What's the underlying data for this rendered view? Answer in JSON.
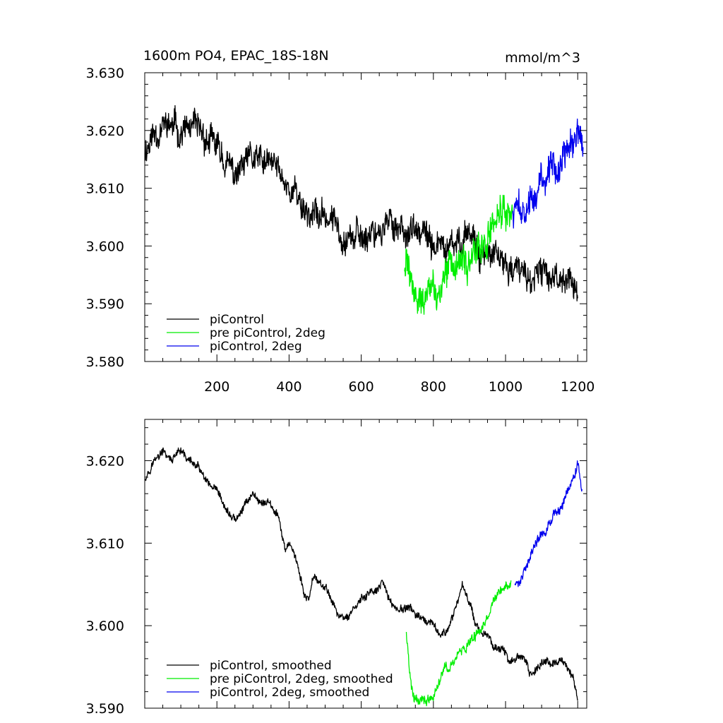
{
  "chart_data": [
    {
      "type": "line",
      "title": "1600m PO4, EPAC_18S-18N",
      "units": "mmol/m^3",
      "xlim": [
        0,
        1225
      ],
      "ylim": [
        3.58,
        3.63
      ],
      "xticks": [
        200,
        400,
        600,
        800,
        1000,
        1200
      ],
      "xtick_labels": [
        "200",
        "400",
        "600",
        "800",
        "1000",
        "1200"
      ],
      "yticks": [
        3.58,
        3.59,
        3.6,
        3.61,
        3.62,
        3.63
      ],
      "ytick_labels": [
        "3.580",
        "3.590",
        "3.600",
        "3.610",
        "3.620",
        "3.630"
      ],
      "legend_position": "bottom-left",
      "series": [
        {
          "name": "piControl",
          "color": "#000000",
          "x": [
            1,
            30,
            60,
            100,
            130,
            160,
            200,
            230,
            250,
            280,
            300,
            330,
            360,
            390,
            420,
            450,
            480,
            510,
            540,
            570,
            600,
            630,
            660,
            690,
            720,
            750,
            780,
            810,
            840,
            870,
            890,
            910,
            930,
            960,
            990,
            1020,
            1050,
            1080,
            1110,
            1140,
            1170,
            1190,
            1200
          ],
          "values": [
            3.617,
            3.62,
            3.621,
            3.62,
            3.62,
            3.619,
            3.617,
            3.614,
            3.612,
            3.614,
            3.615,
            3.614,
            3.614,
            3.611,
            3.609,
            3.606,
            3.605,
            3.605,
            3.603,
            3.602,
            3.601,
            3.603,
            3.603,
            3.604,
            3.603,
            3.602,
            3.601,
            3.6,
            3.599,
            3.6,
            3.603,
            3.602,
            3.599,
            3.598,
            3.597,
            3.596,
            3.595,
            3.594,
            3.595,
            3.595,
            3.595,
            3.593,
            3.59
          ],
          "noise": 0.0018
        },
        {
          "name": "pre piControl, 2deg",
          "color": "#00ee00",
          "x": [
            720,
            735,
            750,
            770,
            790,
            810,
            830,
            850,
            870,
            890,
            910,
            930,
            950,
            970,
            990,
            1010,
            1020
          ],
          "values": [
            3.598,
            3.594,
            3.591,
            3.591,
            3.592,
            3.591,
            3.594,
            3.596,
            3.596,
            3.597,
            3.598,
            3.6,
            3.601,
            3.603,
            3.605,
            3.605,
            3.606
          ],
          "noise": 0.0022
        },
        {
          "name": "piControl, 2deg",
          "color": "#0000ee",
          "x": [
            1020,
            1040,
            1060,
            1080,
            1100,
            1120,
            1140,
            1160,
            1180,
            1200,
            1215
          ],
          "values": [
            3.605,
            3.606,
            3.607,
            3.609,
            3.611,
            3.612,
            3.613,
            3.615,
            3.617,
            3.619,
            3.618
          ],
          "noise": 0.002
        }
      ]
    },
    {
      "type": "line",
      "title": "",
      "xlim": [
        0,
        1225
      ],
      "ylim": [
        3.59,
        3.625
      ],
      "xticks": [
        200,
        400,
        600,
        800,
        1000,
        1200
      ],
      "yticks": [
        3.59,
        3.6,
        3.61,
        3.62
      ],
      "ytick_labels": [
        "3.590",
        "3.600",
        "3.610",
        "3.620"
      ],
      "legend_position": "bottom-left",
      "series": [
        {
          "name": "piControl, smoothed",
          "color": "#000000",
          "x": [
            1,
            25,
            50,
            75,
            100,
            125,
            150,
            175,
            200,
            225,
            245,
            260,
            280,
            300,
            320,
            345,
            370,
            390,
            405,
            420,
            440,
            455,
            470,
            490,
            510,
            540,
            560,
            580,
            600,
            620,
            640,
            660,
            680,
            700,
            720,
            740,
            760,
            780,
            800,
            820,
            840,
            860,
            880,
            900,
            920,
            940,
            960,
            990,
            1010,
            1030,
            1050,
            1070,
            1090,
            1110,
            1130,
            1150,
            1170,
            1185,
            1200
          ],
          "values": [
            3.618,
            3.62,
            3.621,
            3.62,
            3.621,
            3.62,
            3.619,
            3.617,
            3.616,
            3.614,
            3.613,
            3.613,
            3.615,
            3.616,
            3.615,
            3.615,
            3.613,
            3.609,
            3.61,
            3.608,
            3.604,
            3.603,
            3.606,
            3.605,
            3.604,
            3.601,
            3.601,
            3.602,
            3.603,
            3.604,
            3.604,
            3.605,
            3.603,
            3.602,
            3.602,
            3.602,
            3.601,
            3.6,
            3.6,
            3.599,
            3.599,
            3.602,
            3.605,
            3.603,
            3.6,
            3.599,
            3.598,
            3.597,
            3.596,
            3.596,
            3.596,
            3.594,
            3.595,
            3.596,
            3.595,
            3.596,
            3.595,
            3.594,
            3.591
          ],
          "noise": 0.00035
        },
        {
          "name": "pre piControl, 2deg, smoothed",
          "color": "#00ee00",
          "x": [
            725,
            735,
            745,
            760,
            780,
            800,
            815,
            830,
            845,
            860,
            880,
            900,
            920,
            940,
            960,
            980,
            1000,
            1015
          ],
          "values": [
            3.599,
            3.594,
            3.591,
            3.591,
            3.591,
            3.591,
            3.593,
            3.595,
            3.595,
            3.596,
            3.597,
            3.598,
            3.599,
            3.6,
            3.602,
            3.604,
            3.605,
            3.605
          ],
          "noise": 0.00045
        },
        {
          "name": "piControl, 2deg, smoothed",
          "color": "#0000ee",
          "x": [
            1025,
            1040,
            1055,
            1070,
            1085,
            1100,
            1115,
            1130,
            1145,
            1160,
            1175,
            1190,
            1200,
            1212
          ],
          "values": [
            3.605,
            3.605,
            3.607,
            3.609,
            3.61,
            3.611,
            3.612,
            3.613,
            3.614,
            3.615,
            3.617,
            3.618,
            3.62,
            3.617
          ],
          "noise": 0.0004
        }
      ]
    }
  ]
}
